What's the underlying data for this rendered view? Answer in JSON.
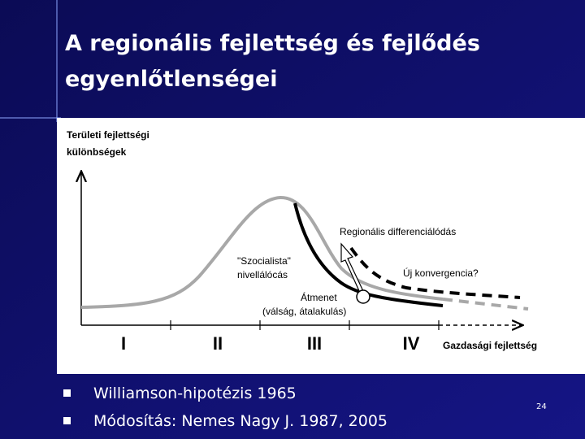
{
  "header": {
    "title_lines": [
      "A regionális fejlettség és fejlődés",
      "egyenlőtlenségei"
    ]
  },
  "diagram": {
    "y_axis_label_lines": [
      "Területi fejlettségi",
      "különbségek"
    ],
    "x_axis_label": "Gazdasági fejlettség",
    "phases": [
      "I",
      "II",
      "III",
      "IV"
    ],
    "annotations": {
      "differentiation": "Regionális differenciálódás",
      "convergence": "Új konvergencia?",
      "socialist_1": "\"Szocialista\"",
      "socialist_2": "nivellálócás",
      "transition_1": "Átmenet",
      "transition_2": "(válság, átalakulás)"
    }
  },
  "bullets": [
    "Williamson-hipotézis 1965",
    "Módosítás: Nemes Nagy J. 1987, 2005"
  ],
  "page_number": "24"
}
